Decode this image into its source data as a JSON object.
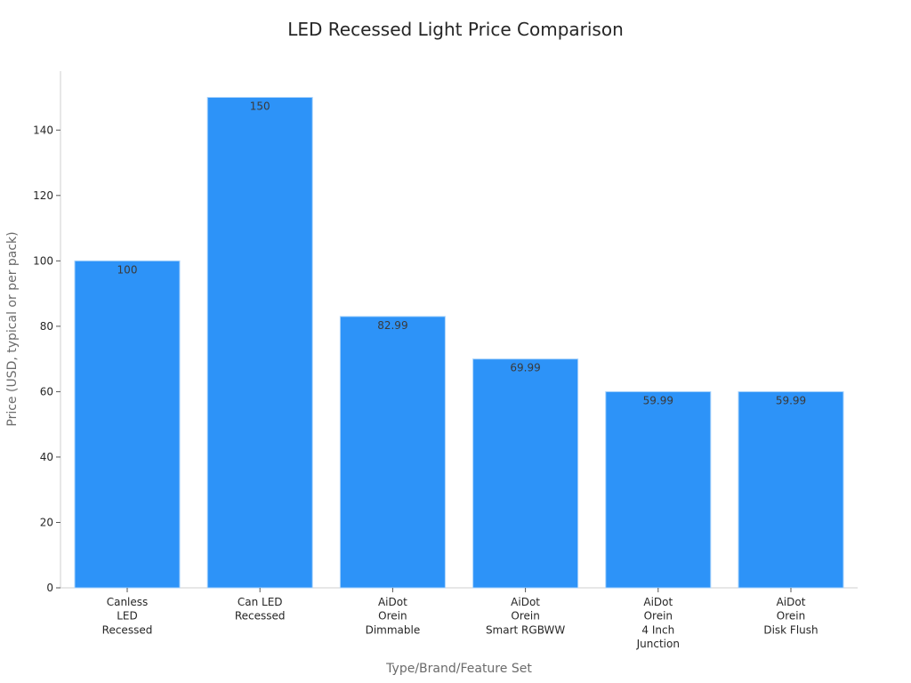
{
  "chart_data": {
    "type": "bar",
    "title": "LED Recessed Light Price Comparison",
    "xlabel": "Type/Brand/Feature Set",
    "ylabel": "Price (USD, typical or per pack)",
    "categories": [
      [
        "Canless",
        "LED",
        "Recessed"
      ],
      [
        "Can LED",
        "Recessed"
      ],
      [
        "AiDot",
        "Orein",
        "Dimmable"
      ],
      [
        "AiDot",
        "Orein",
        "Smart RGBWW"
      ],
      [
        "AiDot",
        "Orein",
        "4 Inch",
        "Junction"
      ],
      [
        "AiDot",
        "Orein",
        "Disk Flush"
      ]
    ],
    "values": [
      100,
      150,
      82.99,
      69.99,
      59.99,
      59.99
    ],
    "data_labels": [
      "100",
      "150",
      "82.99",
      "69.99",
      "59.99",
      "59.99"
    ],
    "ylim": [
      0,
      155
    ],
    "yticks": [
      0,
      20,
      40,
      60,
      80,
      100,
      120,
      140
    ],
    "bar_color": "#2d93f8",
    "bar_edge_color": "#a9d3fb",
    "grid": false,
    "legend": "none"
  }
}
